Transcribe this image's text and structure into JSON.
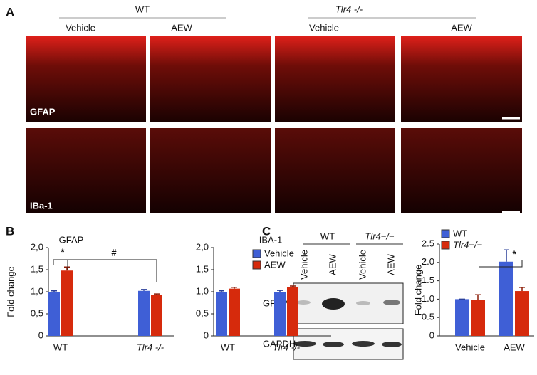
{
  "panel_a": {
    "label": "A",
    "groups": [
      "WT",
      "Tlr4 -/-"
    ],
    "columns": [
      "Vehicle",
      "AEW",
      "Vehicle",
      "AEW"
    ],
    "rows": [
      "GFAP",
      "IBa-1"
    ]
  },
  "panel_b": {
    "label": "B"
  },
  "panel_c": {
    "label": "C",
    "groups": [
      "WT",
      "Tlr4−/−"
    ],
    "lanes": [
      "Vehicle",
      "AEW",
      "Vehicle",
      "AEW"
    ],
    "rows": [
      "GFAP",
      "GAPDH"
    ]
  },
  "chart_data": [
    {
      "type": "bar",
      "title": "GFAP",
      "y_label": "Fold change",
      "categories": [
        "WT",
        "Tlr4 -/-"
      ],
      "series": [
        {
          "name": "Vehicle",
          "color": "#3f5fd6",
          "values": [
            1.0,
            1.02
          ],
          "errors": [
            0.02,
            0.03
          ]
        },
        {
          "name": "AEW",
          "color": "#d62a0c",
          "values": [
            1.48,
            0.92
          ],
          "errors": [
            0.08,
            0.03
          ]
        }
      ],
      "ylim": [
        0,
        2
      ],
      "yticks": [
        0,
        {
          "value": 0.5,
          "label": "0,5"
        },
        {
          "value": 1,
          "label": "1,0"
        },
        {
          "value": 1.5,
          "label": "1,5"
        },
        {
          "value": 2,
          "label": "2,0"
        }
      ],
      "annotations": [
        "*",
        "#"
      ]
    },
    {
      "type": "bar",
      "title": "IBA-1",
      "categories": [
        "WT",
        "Tlr4 -/-"
      ],
      "series": [
        {
          "name": "Vehicle",
          "color": "#3f5fd6",
          "values": [
            1.0,
            1.0
          ],
          "errors": [
            0.02,
            0.03
          ]
        },
        {
          "name": "AEW",
          "color": "#d62a0c",
          "values": [
            1.07,
            1.1
          ],
          "errors": [
            0.03,
            0.03
          ]
        }
      ],
      "ylim": [
        0,
        2
      ],
      "yticks": [
        0,
        {
          "value": 0.5,
          "label": "0,5"
        },
        {
          "value": 1,
          "label": "1,0"
        },
        {
          "value": 1.5,
          "label": "1,5"
        },
        {
          "value": 2,
          "label": "2,0"
        }
      ],
      "legend": "top-right"
    },
    {
      "type": "bar",
      "y_label": "Fold change",
      "categories": [
        "Vehicle",
        "AEW"
      ],
      "series": [
        {
          "name": "WT",
          "color": "#3f5fd6",
          "values": [
            1.0,
            2.02
          ],
          "errors": [
            0,
            0.32
          ]
        },
        {
          "name": "Tlr4−/−",
          "color": "#d62a0c",
          "values": [
            0.97,
            1.22
          ],
          "errors": [
            0.15,
            0.1
          ]
        }
      ],
      "ylim": [
        0,
        2.5
      ],
      "yticks": [
        0,
        {
          "value": 0.5,
          "label": "0.5"
        },
        {
          "value": 1,
          "label": "1.0"
        },
        {
          "value": 1.5,
          "label": "1.5"
        },
        {
          "value": 2,
          "label": "2.0"
        },
        {
          "value": 2.5,
          "label": "2.5"
        }
      ],
      "legend": "top-left",
      "annotations": [
        "*"
      ]
    }
  ]
}
